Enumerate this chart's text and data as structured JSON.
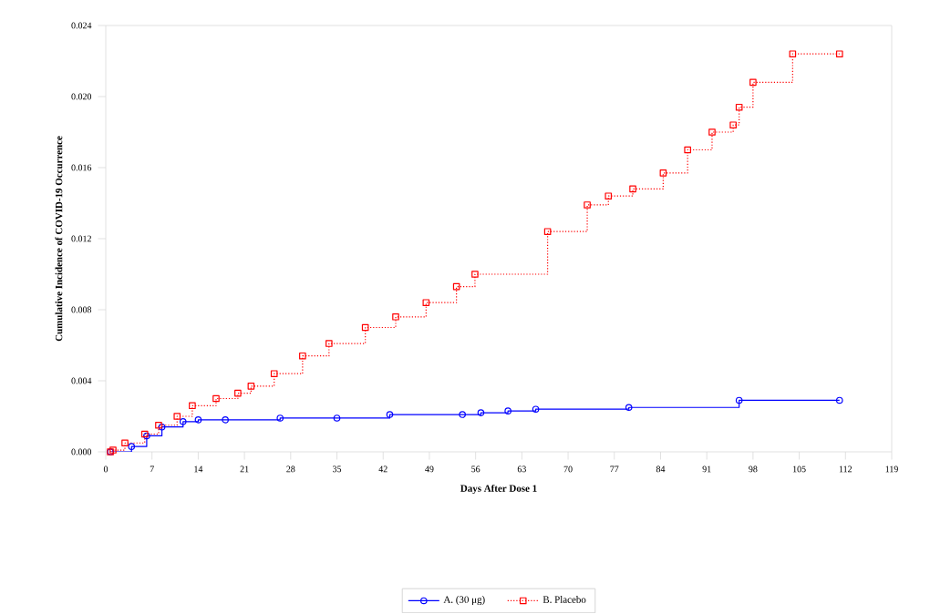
{
  "chart_data": {
    "type": "step",
    "xlabel": "Days After Dose 1",
    "ylabel": "Cumulative Incidence of COVID-19 Occurrence",
    "xlim": [
      0,
      119
    ],
    "xticks": [
      0,
      7,
      14,
      21,
      28,
      35,
      42,
      49,
      56,
      63,
      70,
      77,
      84,
      91,
      98,
      105,
      112,
      119
    ],
    "ylim": [
      0,
      0.024
    ],
    "yticks": [
      {
        "value": 0,
        "label": "0.000"
      },
      {
        "value": 0.004,
        "label": "0.004"
      },
      {
        "value": 0.008,
        "label": "0.008"
      },
      {
        "value": 0.012,
        "label": "0.012"
      },
      {
        "value": 0.016,
        "label": "0.016"
      },
      {
        "value": 0.02,
        "label": "0.020"
      },
      {
        "value": 0.024,
        "label": "0.024"
      }
    ],
    "grid": false,
    "legend": "bottom",
    "series": [
      {
        "name": "A. (30 μg)",
        "color": "#0000ff",
        "marker": "circle",
        "line_style": "solid",
        "x": [
          0.7,
          3.9,
          6.2,
          8.5,
          11.7,
          14,
          18.1,
          26.4,
          35,
          43,
          54,
          56.8,
          60.9,
          65.1,
          79.2,
          95.9,
          111.1
        ],
        "values": [
          0,
          0.0003,
          0.0009,
          0.0014,
          0.0017,
          0.0018,
          0.0018,
          0.0019,
          0.0019,
          0.0021,
          0.0021,
          0.0022,
          0.0023,
          0.0024,
          0.0025,
          0.0029,
          0.0029
        ]
      },
      {
        "name": "B. Placebo",
        "color": "#ff0000",
        "marker": "square",
        "line_style": "dotted",
        "x": [
          0.7,
          1.1,
          2.9,
          5.9,
          8,
          10.8,
          13.1,
          16.7,
          20,
          22,
          25.5,
          29.8,
          33.8,
          39.3,
          43.9,
          48.5,
          53.1,
          55.9,
          66.9,
          72.9,
          76.1,
          79.8,
          84.4,
          88.1,
          91.8,
          95,
          95.9,
          98,
          104,
          111.1
        ],
        "values": [
          0,
          0.0001,
          0.0005,
          0.001,
          0.0015,
          0.002,
          0.0026,
          0.003,
          0.0033,
          0.0037,
          0.0044,
          0.0054,
          0.0061,
          0.007,
          0.0076,
          0.0084,
          0.0093,
          0.01,
          0.0124,
          0.0139,
          0.0144,
          0.0148,
          0.0157,
          0.017,
          0.018,
          0.0184,
          0.0194,
          0.0208,
          0.0224,
          0.0224
        ]
      }
    ]
  }
}
